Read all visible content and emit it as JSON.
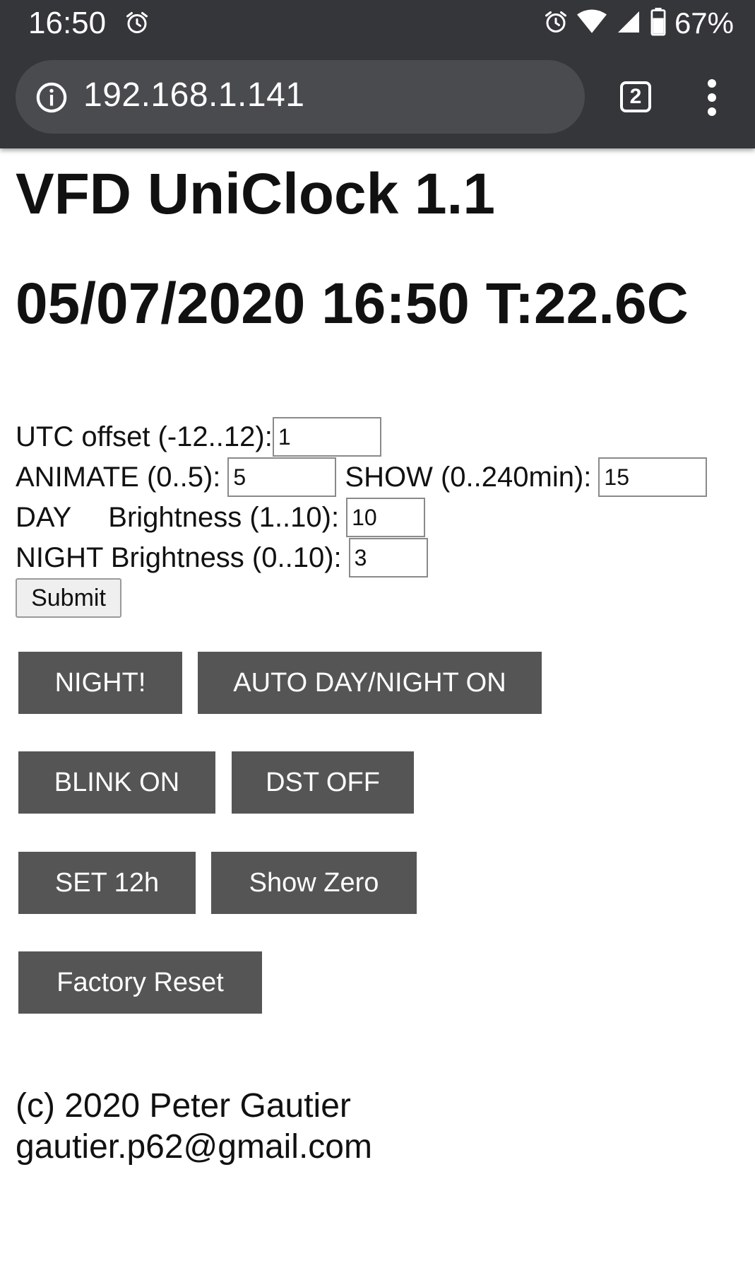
{
  "status_bar": {
    "time": "16:50",
    "battery": "67%",
    "icons": [
      "alarm-icon",
      "alarm-icon",
      "wifi-icon",
      "signal-icon",
      "battery-icon"
    ]
  },
  "browser": {
    "url": "192.168.1.141",
    "tab_count": "2",
    "icons": [
      "info-icon",
      "tabs-icon",
      "menu-icon"
    ]
  },
  "page": {
    "title": "VFD UniClock 1.1",
    "datetime": "05/07/2020 16:50 T:22.6C"
  },
  "form": {
    "utc_label": "UTC offset (-12..12):",
    "utc_value": "1",
    "animate_label": "ANIMATE (0..5):",
    "animate_value": "5",
    "show_label": "SHOW (0..240min):",
    "show_value": "15",
    "day_label": "DAY",
    "day_brightness_label": "Brightness (1..10):",
    "day_brightness_value": "10",
    "night_brightness_label": "NIGHT Brightness (0..10):",
    "night_brightness_value": "3",
    "submit_label": "Submit"
  },
  "buttons": {
    "night": "NIGHT!",
    "auto_day_night": "AUTO DAY/NIGHT ON",
    "blink": "BLINK ON",
    "dst": "DST OFF",
    "set12h": "SET 12h",
    "show_zero": "Show Zero",
    "factory_reset": "Factory Reset"
  },
  "footer": {
    "copyright": "(c) 2020 Peter Gautier",
    "email": "gautier.p62@gmail.com"
  },
  "colors": {
    "chrome_bg": "#35363a",
    "url_pill_bg": "#4a4b4f",
    "button_bg": "#555555",
    "button_text": "#ffffff",
    "page_bg": "#ffffff"
  }
}
